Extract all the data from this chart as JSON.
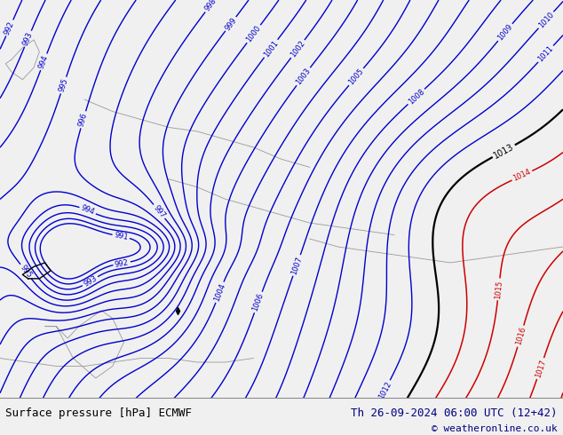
{
  "title_left": "Surface pressure [hPa] ECMWF",
  "title_right": "Th 26-09-2024 06:00 UTC (12+42)",
  "copyright": "© weatheronline.co.uk",
  "bg_color": "#aade78",
  "footer_bg": "#f0f0f0",
  "footer_text_color": "#000080",
  "blue_contour_color": "#0000cc",
  "red_contour_color": "#cc0000",
  "black_contour_color": "#000000",
  "coast_color": "#999999",
  "title_fontsize": 9,
  "label_fontsize": 7,
  "figsize": [
    6.34,
    4.9
  ],
  "dpi": 100
}
